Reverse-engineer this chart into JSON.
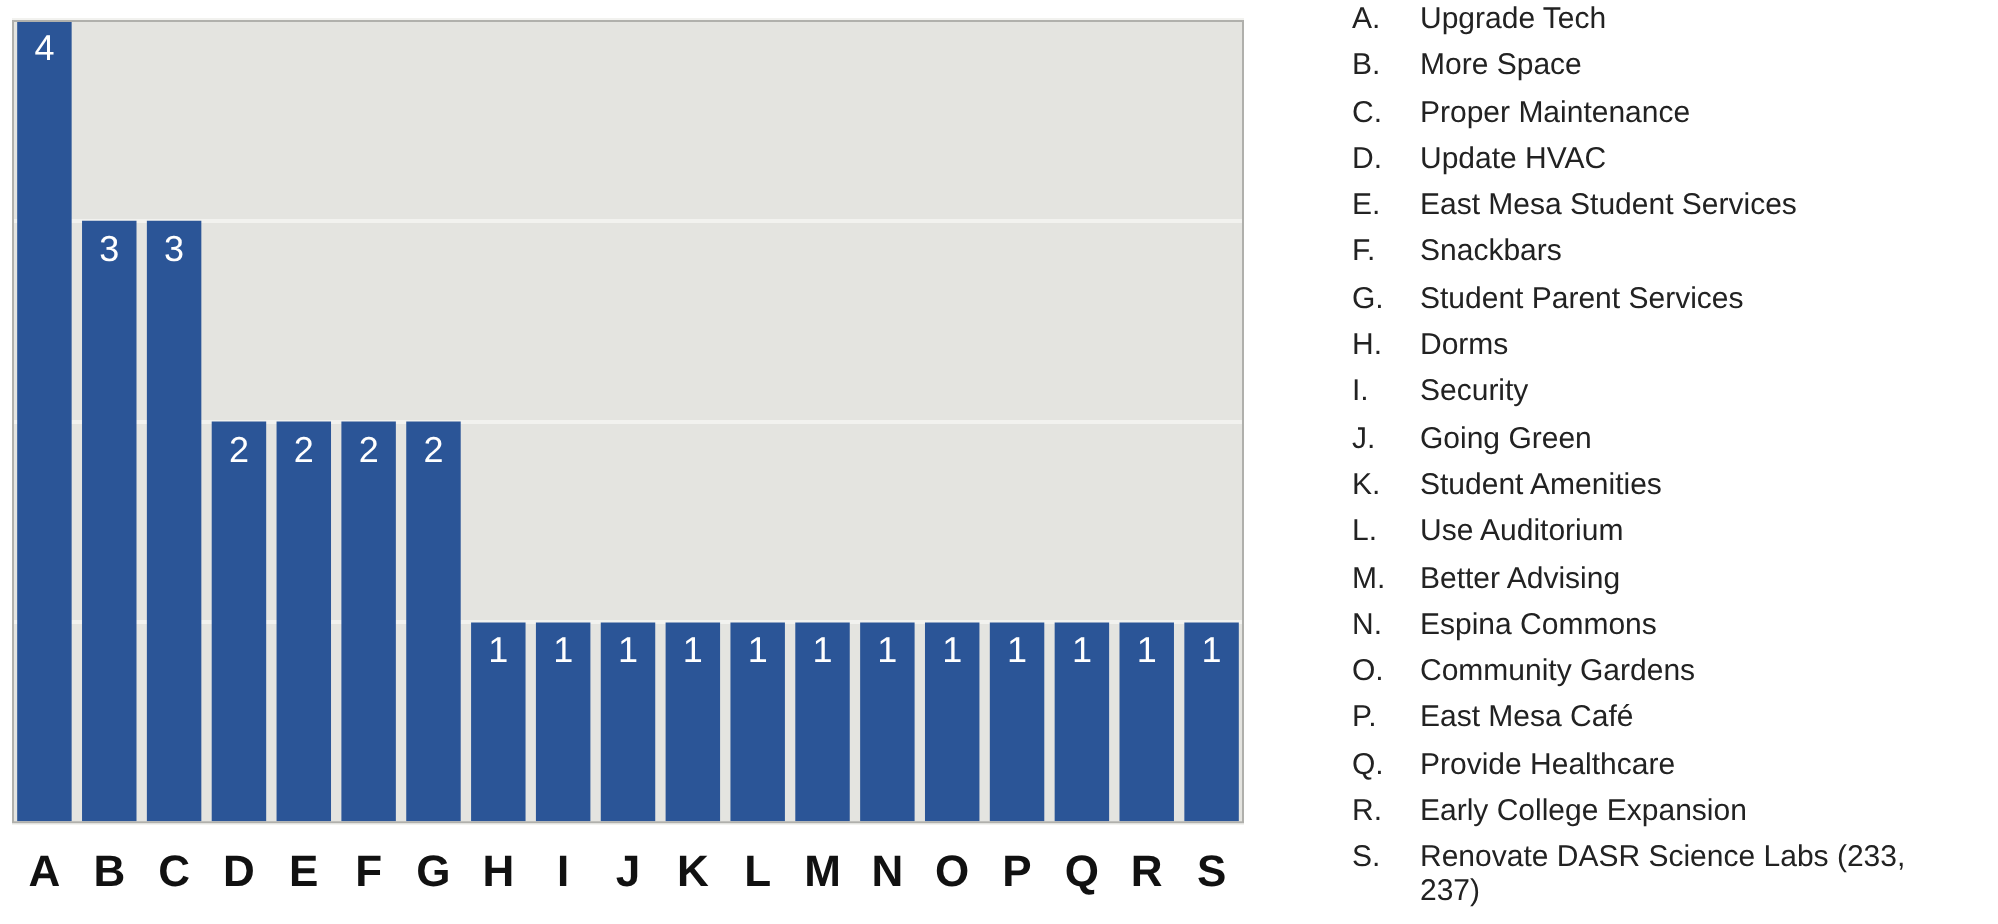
{
  "chart_data": {
    "type": "bar",
    "categories": [
      "A",
      "B",
      "C",
      "D",
      "E",
      "F",
      "G",
      "H",
      "I",
      "J",
      "K",
      "L",
      "M",
      "N",
      "O",
      "P",
      "Q",
      "R",
      "S"
    ],
    "values": [
      4,
      3,
      3,
      2,
      2,
      2,
      2,
      1,
      1,
      1,
      1,
      1,
      1,
      1,
      1,
      1,
      1,
      1,
      1
    ],
    "color": "#2b5597",
    "ylim": [
      0,
      4
    ],
    "yticks": [
      {
        "value": 0,
        "label": null
      },
      {
        "value": 1,
        "label": null
      },
      {
        "value": 2,
        "label": null
      },
      {
        "value": 3,
        "label": null
      },
      {
        "value": 4,
        "label": null
      }
    ],
    "tick_labels": "x",
    "grid": "y",
    "legend": false,
    "data_labels": true,
    "annotations": [
      "A. Upgrade Tech",
      "B. More Space",
      "C. Proper Maintenance",
      "D. Update HVAC",
      "E. East Mesa Student Services",
      "F. Snackbars",
      "G. Student Parent Services",
      "H. Dorms",
      "I. Security",
      "J. Going Green",
      "K. Student Amenities",
      "L. Use Auditorium",
      "M. Better Advising",
      "N. Espina Commons",
      "O. Community Gardens",
      "P. East Mesa Café",
      "Q. Provide Healthcare",
      "R. Early College Expansion",
      "S. Renovate DASR Science Labs (233, 237)"
    ]
  }
}
